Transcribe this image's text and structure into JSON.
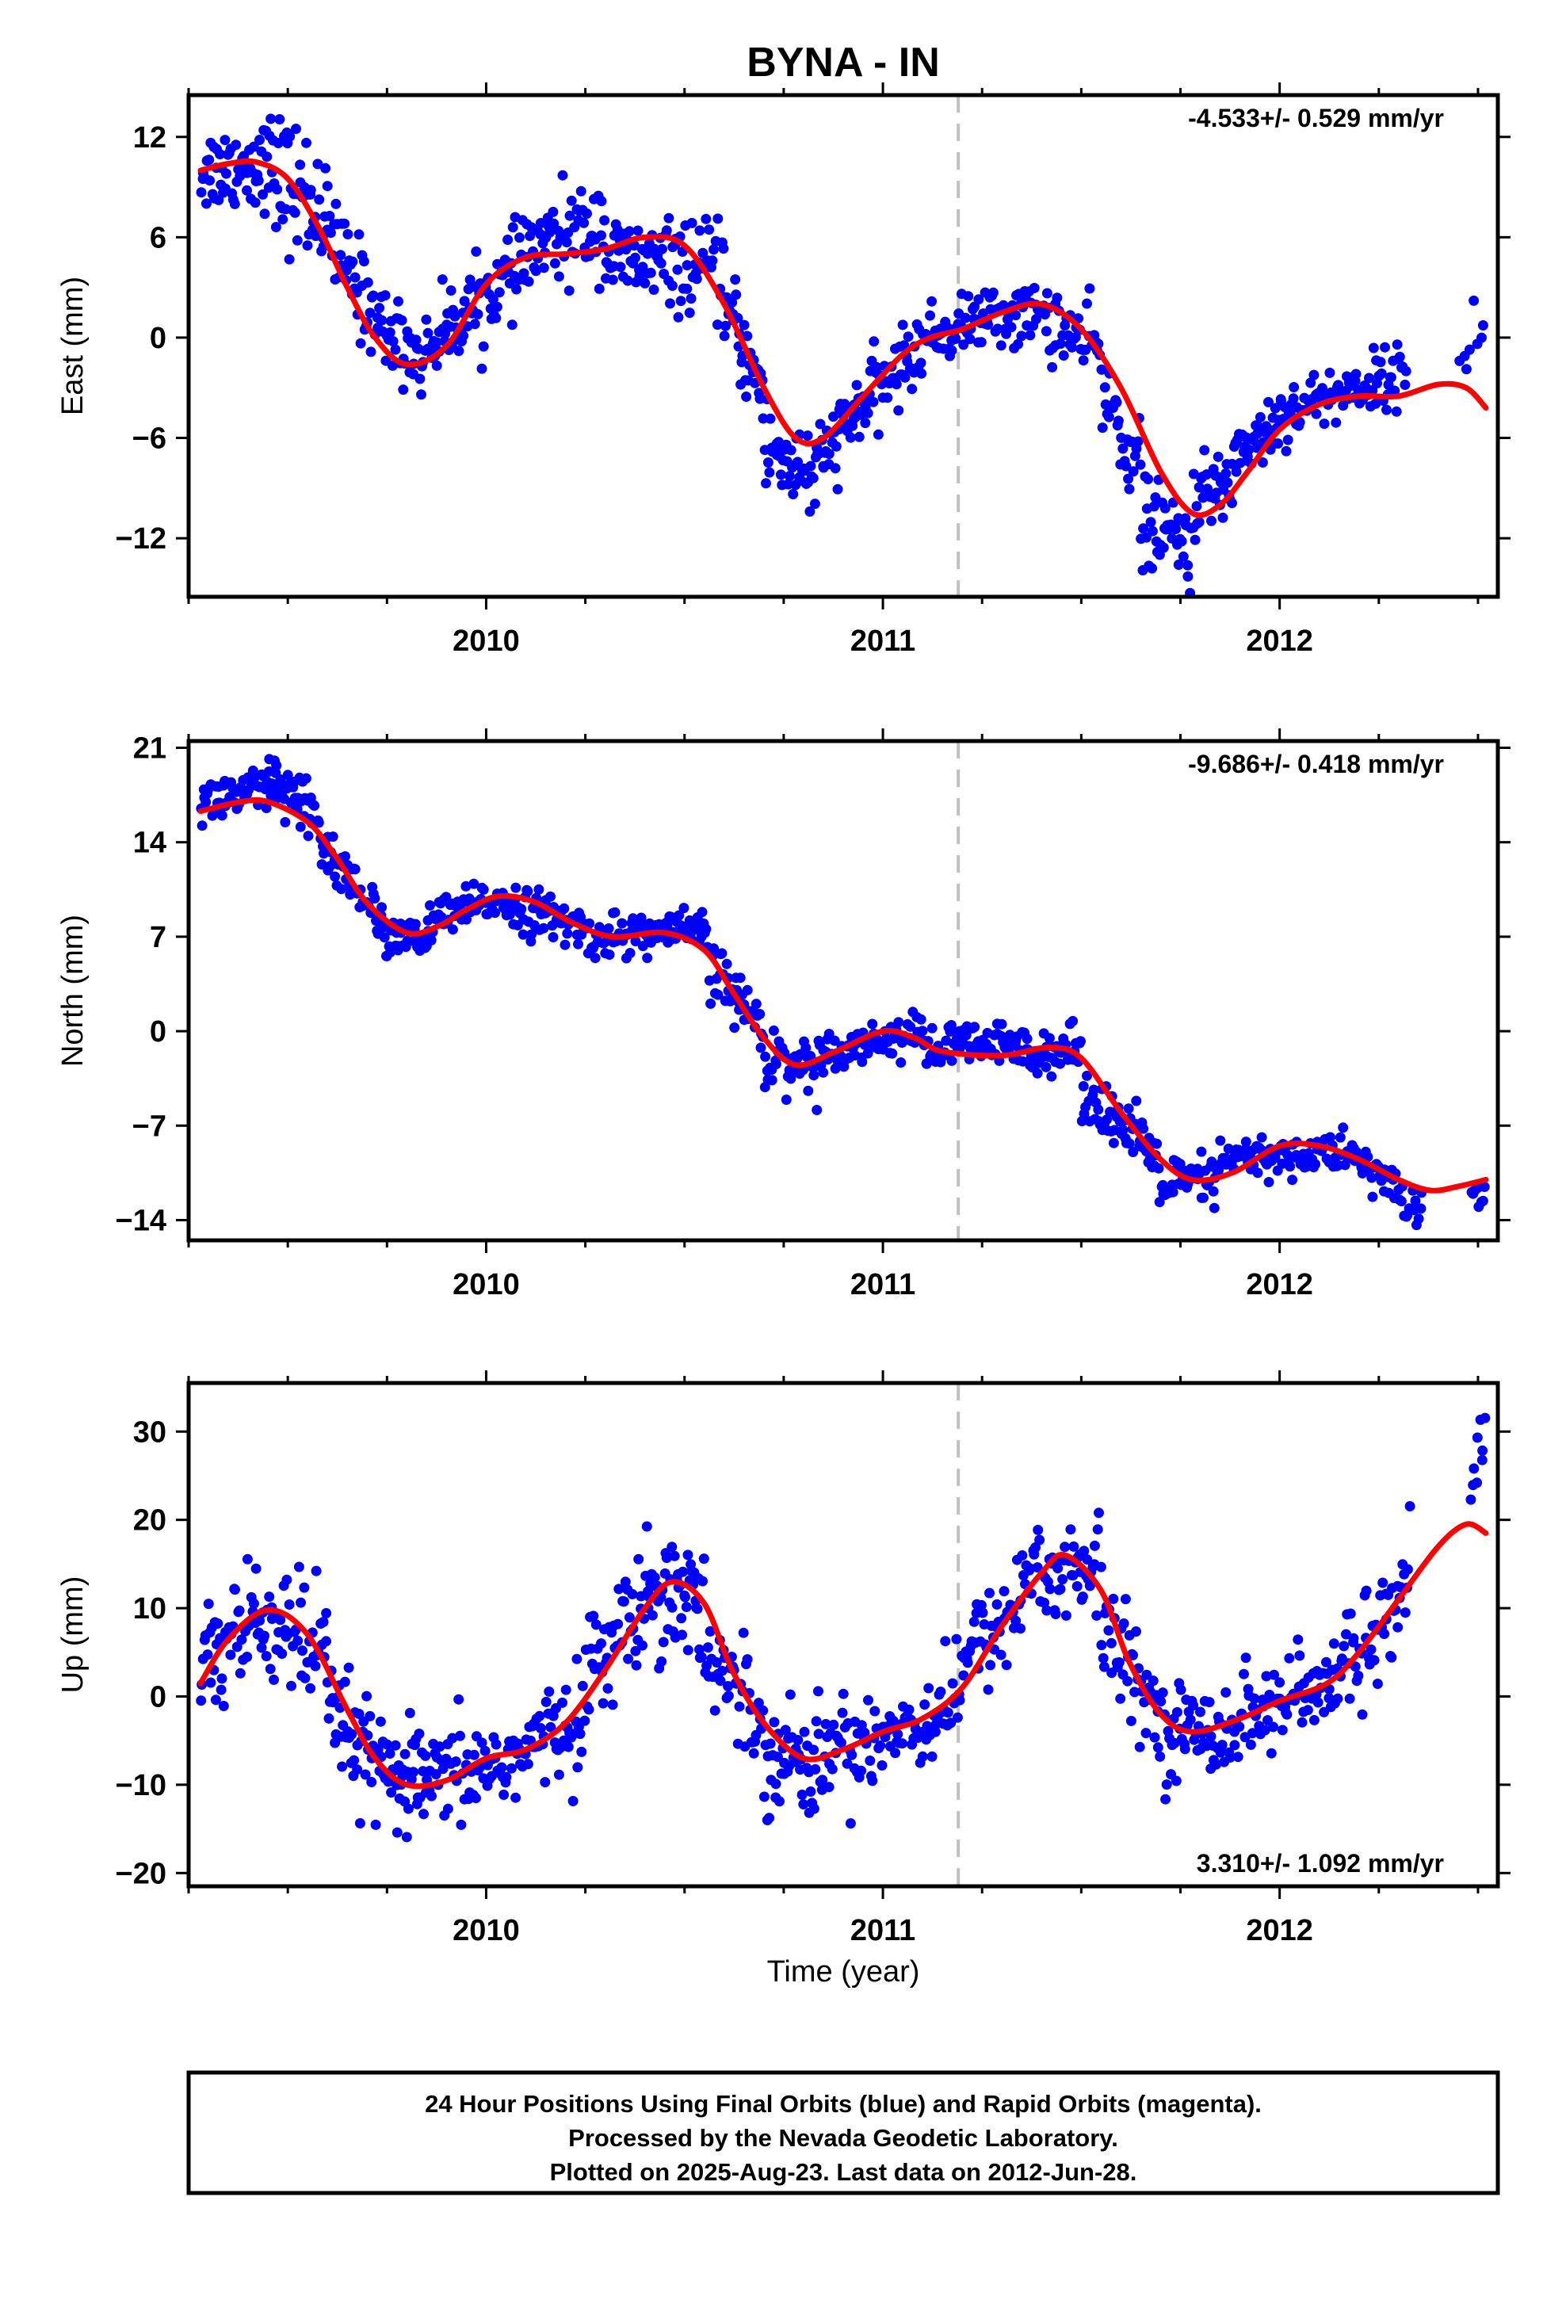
{
  "figure": {
    "title": "BYNA - IN",
    "xlabel": "Time (year)",
    "x_ticks": [
      2010,
      2011,
      2012
    ],
    "x_range": [
      2009.25,
      2012.55
    ],
    "break_epoch": 2011.19,
    "footer_lines": [
      "24 Hour Positions Using Final Orbits (blue) and Rapid Orbits (magenta).",
      "Processed by the Nevada Geodetic Laboratory.",
      "Plotted on 2025-Aug-23. Last data on 2012-Jun-28."
    ],
    "colors": {
      "observations": "#0000ff",
      "model": "#ff0000",
      "break_line": "#c0c0c0"
    }
  },
  "chart_data": [
    {
      "type": "scatter",
      "ylabel": "East (mm)",
      "rate_text": "-4.533+/- 0.529 mm/yr",
      "rate_position": "top-right",
      "ylim": [
        -15.5,
        14.5
      ],
      "y_ticks": [
        12,
        6,
        0,
        -6,
        -12
      ],
      "y_tick_labels": [
        "12",
        "6",
        "0",
        "−6",
        "−12"
      ],
      "model": [
        [
          2009.28,
          10.0
        ],
        [
          2009.35,
          10.4
        ],
        [
          2009.42,
          10.5
        ],
        [
          2009.5,
          9.5
        ],
        [
          2009.58,
          6.5
        ],
        [
          2009.65,
          3.0
        ],
        [
          2009.72,
          0.0
        ],
        [
          2009.8,
          -1.6
        ],
        [
          2009.9,
          -0.5
        ],
        [
          2010.0,
          3.2
        ],
        [
          2010.1,
          4.8
        ],
        [
          2010.2,
          5.0
        ],
        [
          2010.3,
          5.3
        ],
        [
          2010.4,
          6.0
        ],
        [
          2010.5,
          5.5
        ],
        [
          2010.6,
          2.0
        ],
        [
          2010.7,
          -3.0
        ],
        [
          2010.78,
          -6.0
        ],
        [
          2010.85,
          -6.0
        ],
        [
          2010.95,
          -3.5
        ],
        [
          2011.05,
          -1.0
        ],
        [
          2011.12,
          0.0
        ],
        [
          2011.2,
          0.5
        ],
        [
          2011.3,
          1.5
        ],
        [
          2011.4,
          2.0
        ],
        [
          2011.5,
          0.5
        ],
        [
          2011.6,
          -3.0
        ],
        [
          2011.7,
          -8.0
        ],
        [
          2011.78,
          -10.5
        ],
        [
          2011.85,
          -10.0
        ],
        [
          2011.92,
          -8.0
        ],
        [
          2012.0,
          -5.5
        ],
        [
          2012.1,
          -4.0
        ],
        [
          2012.2,
          -3.5
        ],
        [
          2012.3,
          -3.5
        ],
        [
          2012.4,
          -2.8
        ],
        [
          2012.47,
          -3.0
        ],
        [
          2012.52,
          -4.2
        ]
      ],
      "observations": {
        "segments": [
          [
            2009.28,
            2009.45,
            10.0,
            10.5,
            1.5,
            55
          ],
          [
            2009.45,
            2009.6,
            10.0,
            7.5,
            2.3,
            50
          ],
          [
            2009.6,
            2009.72,
            6.0,
            1.5,
            1.7,
            40
          ],
          [
            2009.72,
            2009.85,
            1.0,
            -1.5,
            1.4,
            40
          ],
          [
            2009.85,
            2009.95,
            -0.5,
            1.5,
            1.3,
            35
          ],
          [
            2009.95,
            2010.1,
            1.5,
            4.5,
            1.4,
            50
          ],
          [
            2010.1,
            2010.3,
            5.0,
            7.0,
            1.6,
            60
          ],
          [
            2010.3,
            2010.4,
            4.8,
            4.5,
            1.4,
            35
          ],
          [
            2010.4,
            2010.6,
            4.5,
            4.0,
            1.5,
            60
          ],
          [
            2010.6,
            2010.7,
            2.0,
            -3.5,
            1.6,
            35
          ],
          [
            2010.7,
            2010.85,
            -6.5,
            -8.5,
            1.8,
            50
          ],
          [
            2010.85,
            2010.95,
            -7.0,
            -4.0,
            1.3,
            35
          ],
          [
            2010.95,
            2011.1,
            -4.0,
            -0.5,
            1.2,
            50
          ],
          [
            2011.1,
            2011.2,
            0.0,
            0.5,
            1.0,
            30
          ],
          [
            2011.2,
            2011.42,
            1.0,
            1.5,
            1.1,
            65
          ],
          [
            2011.42,
            2011.55,
            1.0,
            -1.0,
            1.3,
            35
          ],
          [
            2011.55,
            2011.65,
            -3.0,
            -8.0,
            1.5,
            30
          ],
          [
            2011.65,
            2011.78,
            -11.0,
            -12.5,
            1.6,
            45
          ],
          [
            2011.78,
            2011.88,
            -10.0,
            -8.5,
            1.3,
            35
          ],
          [
            2011.88,
            2012.0,
            -7.0,
            -5.0,
            1.2,
            40
          ],
          [
            2012.0,
            2012.32,
            -4.5,
            -2.0,
            1.0,
            90
          ],
          [
            2012.45,
            2012.52,
            -1.5,
            1.5,
            1.3,
            8
          ]
        ]
      }
    },
    {
      "type": "scatter",
      "ylabel": "North (mm)",
      "rate_text": "-9.686+/- 0.418 mm/yr",
      "rate_position": "top-right",
      "ylim": [
        -15.5,
        21.5
      ],
      "y_ticks": [
        21,
        14,
        7,
        0,
        -7,
        -14
      ],
      "y_tick_labels": [
        "21",
        "14",
        "7",
        "0",
        "−7",
        "−14"
      ],
      "model": [
        [
          2009.28,
          16.3
        ],
        [
          2009.38,
          17.0
        ],
        [
          2009.45,
          17.0
        ],
        [
          2009.55,
          15.5
        ],
        [
          2009.62,
          13.0
        ],
        [
          2009.7,
          9.5
        ],
        [
          2009.8,
          7.3
        ],
        [
          2009.88,
          7.8
        ],
        [
          2009.95,
          9.0
        ],
        [
          2010.03,
          10.0
        ],
        [
          2010.12,
          9.6
        ],
        [
          2010.22,
          8.0
        ],
        [
          2010.32,
          7.0
        ],
        [
          2010.45,
          7.3
        ],
        [
          2010.55,
          6.0
        ],
        [
          2010.62,
          3.0
        ],
        [
          2010.7,
          -0.5
        ],
        [
          2010.78,
          -2.5
        ],
        [
          2010.88,
          -1.5
        ],
        [
          2011.0,
          0.0
        ],
        [
          2011.08,
          -0.5
        ],
        [
          2011.15,
          -1.5
        ],
        [
          2011.3,
          -1.8
        ],
        [
          2011.42,
          -1.2
        ],
        [
          2011.5,
          -2.0
        ],
        [
          2011.6,
          -6.0
        ],
        [
          2011.7,
          -9.5
        ],
        [
          2011.78,
          -11.0
        ],
        [
          2011.88,
          -10.5
        ],
        [
          2012.0,
          -8.5
        ],
        [
          2012.1,
          -8.5
        ],
        [
          2012.2,
          -9.5
        ],
        [
          2012.3,
          -11.0
        ],
        [
          2012.38,
          -11.8
        ],
        [
          2012.45,
          -11.5
        ],
        [
          2012.52,
          -11.0
        ]
      ],
      "observations": {
        "segments": [
          [
            2009.28,
            2009.45,
            17.0,
            17.8,
            1.1,
            55
          ],
          [
            2009.45,
            2009.58,
            18.5,
            15.5,
            1.3,
            45
          ],
          [
            2009.58,
            2009.72,
            14.0,
            9.0,
            1.2,
            40
          ],
          [
            2009.72,
            2009.85,
            7.5,
            6.5,
            1.0,
            40
          ],
          [
            2009.85,
            2010.05,
            8.0,
            10.0,
            0.9,
            60
          ],
          [
            2010.05,
            2010.25,
            9.5,
            7.5,
            1.0,
            60
          ],
          [
            2010.25,
            2010.55,
            7.0,
            7.5,
            0.9,
            90
          ],
          [
            2010.55,
            2010.7,
            5.5,
            0.0,
            1.3,
            45
          ],
          [
            2010.7,
            2010.85,
            -2.0,
            -2.5,
            1.2,
            45
          ],
          [
            2010.85,
            2011.1,
            -1.5,
            0.0,
            0.8,
            70
          ],
          [
            2011.1,
            2011.2,
            -1.5,
            -1.0,
            1.0,
            30
          ],
          [
            2011.2,
            2011.5,
            -1.0,
            -1.5,
            1.0,
            85
          ],
          [
            2011.5,
            2011.7,
            -4.0,
            -10.0,
            1.3,
            60
          ],
          [
            2011.7,
            2011.85,
            -11.5,
            -11.0,
            1.2,
            45
          ],
          [
            2011.85,
            2012.2,
            -9.5,
            -9.0,
            0.9,
            100
          ],
          [
            2012.2,
            2012.3,
            -10.0,
            -11.5,
            1.0,
            25
          ],
          [
            2012.3,
            2012.36,
            -12.5,
            -13.5,
            0.9,
            15
          ],
          [
            2012.48,
            2012.52,
            -12.0,
            -12.5,
            0.6,
            8
          ]
        ]
      }
    },
    {
      "type": "scatter",
      "ylabel": "Up (mm)",
      "rate_text": "3.310+/- 1.092 mm/yr",
      "rate_position": "bottom-right",
      "ylim": [
        -21.5,
        35.5
      ],
      "y_ticks": [
        30,
        20,
        10,
        0,
        -10,
        -20
      ],
      "y_tick_labels": [
        "30",
        "20",
        "10",
        "0",
        "−10",
        "−20"
      ],
      "model": [
        [
          2009.28,
          1.5
        ],
        [
          2009.35,
          6.5
        ],
        [
          2009.45,
          9.8
        ],
        [
          2009.55,
          7.0
        ],
        [
          2009.65,
          -1.5
        ],
        [
          2009.72,
          -7.0
        ],
        [
          2009.8,
          -10.0
        ],
        [
          2009.9,
          -9.5
        ],
        [
          2010.0,
          -7.0
        ],
        [
          2010.1,
          -6.0
        ],
        [
          2010.2,
          -3.0
        ],
        [
          2010.3,
          3.0
        ],
        [
          2010.4,
          10.0
        ],
        [
          2010.47,
          13.0
        ],
        [
          2010.55,
          10.5
        ],
        [
          2010.62,
          3.0
        ],
        [
          2010.7,
          -3.0
        ],
        [
          2010.8,
          -7.0
        ],
        [
          2010.9,
          -6.0
        ],
        [
          2011.0,
          -4.0
        ],
        [
          2011.1,
          -2.5
        ],
        [
          2011.2,
          1.0
        ],
        [
          2011.3,
          8.0
        ],
        [
          2011.4,
          14.0
        ],
        [
          2011.46,
          16.0
        ],
        [
          2011.55,
          12.0
        ],
        [
          2011.62,
          4.0
        ],
        [
          2011.7,
          -2.0
        ],
        [
          2011.78,
          -4.0
        ],
        [
          2011.9,
          -2.5
        ],
        [
          2012.0,
          -0.5
        ],
        [
          2012.12,
          1.5
        ],
        [
          2012.2,
          5.0
        ],
        [
          2012.3,
          11.0
        ],
        [
          2012.4,
          17.0
        ],
        [
          2012.47,
          19.5
        ],
        [
          2012.52,
          18.5
        ]
      ],
      "observations": {
        "segments": [
          [
            2009.28,
            2009.45,
            4.0,
            9.0,
            4.5,
            55
          ],
          [
            2009.45,
            2009.6,
            9.0,
            4.0,
            4.5,
            45
          ],
          [
            2009.6,
            2009.72,
            -2.0,
            -7.0,
            3.5,
            40
          ],
          [
            2009.72,
            2009.85,
            -9.0,
            -10.0,
            3.5,
            45
          ],
          [
            2009.85,
            2010.1,
            -10.0,
            -6.5,
            3.2,
            70
          ],
          [
            2010.1,
            2010.25,
            -6.0,
            -2.0,
            3.2,
            45
          ],
          [
            2010.25,
            2010.4,
            3.0,
            10.0,
            3.5,
            45
          ],
          [
            2010.4,
            2010.55,
            13.0,
            11.0,
            4.2,
            55
          ],
          [
            2010.55,
            2010.7,
            5.0,
            -3.0,
            3.5,
            45
          ],
          [
            2010.7,
            2010.85,
            -6.0,
            -8.0,
            3.5,
            50
          ],
          [
            2010.85,
            2011.1,
            -6.0,
            -3.0,
            3.2,
            70
          ],
          [
            2011.1,
            2011.2,
            -3.0,
            1.0,
            3.0,
            30
          ],
          [
            2011.2,
            2011.35,
            4.0,
            11.0,
            3.2,
            45
          ],
          [
            2011.35,
            2011.55,
            14.0,
            14.0,
            3.8,
            60
          ],
          [
            2011.55,
            2011.7,
            8.0,
            -2.0,
            3.2,
            45
          ],
          [
            2011.7,
            2011.9,
            -4.0,
            -3.5,
            3.0,
            60
          ],
          [
            2011.9,
            2012.15,
            -2.0,
            1.0,
            3.0,
            70
          ],
          [
            2012.15,
            2012.33,
            4.0,
            11.0,
            3.5,
            50
          ],
          [
            2012.48,
            2012.52,
            22.0,
            31.0,
            4.0,
            9
          ]
        ]
      }
    }
  ]
}
